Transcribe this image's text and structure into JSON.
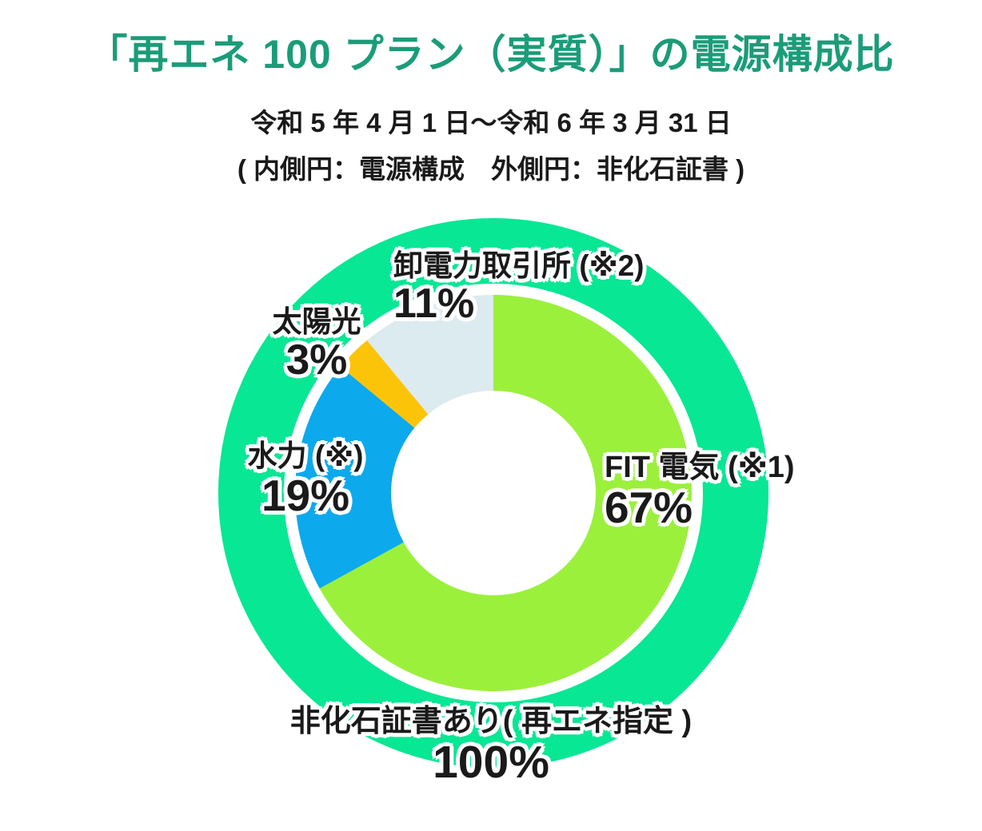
{
  "header": {
    "title": "「再エネ 100 プラン（実質）」の電源構成比",
    "title_color": "#1b9c79",
    "period": "令和 5 年 4 月 1 日～令和 6 年 3 月 31 日",
    "legend_note": "( 内側円：電源構成　外側円：非化石証書 )"
  },
  "chart_data": {
    "type": "pie",
    "variant": "nested-donut",
    "title": "「再エネ 100 プラン（実質）」の電源構成比",
    "period": "令和 5 年 4 月 1 日～令和 6 年 3 月 31 日",
    "start_angle": "12-oclock",
    "direction": "clockwise",
    "inner_ring": {
      "meaning": "電源構成",
      "slices": [
        {
          "name": "FIT 電気 (※1)",
          "value": 67,
          "label": "67%",
          "color": "#9bf03c"
        },
        {
          "name": "水力 (※)",
          "value": 19,
          "label": "19%",
          "color": "#0ca9ec"
        },
        {
          "name": "太陽光",
          "value": 3,
          "label": "3%",
          "color": "#fcc408"
        },
        {
          "name": "卸電力取引所 (※2)",
          "value": 11,
          "label": "11%",
          "color": "#dcebf0"
        }
      ]
    },
    "outer_ring": {
      "meaning": "非化石証書",
      "slices": [
        {
          "name": "非化石証書あり( 再エネ指定 )",
          "value": 100,
          "label": "100%",
          "color": "#07e794"
        }
      ]
    }
  }
}
